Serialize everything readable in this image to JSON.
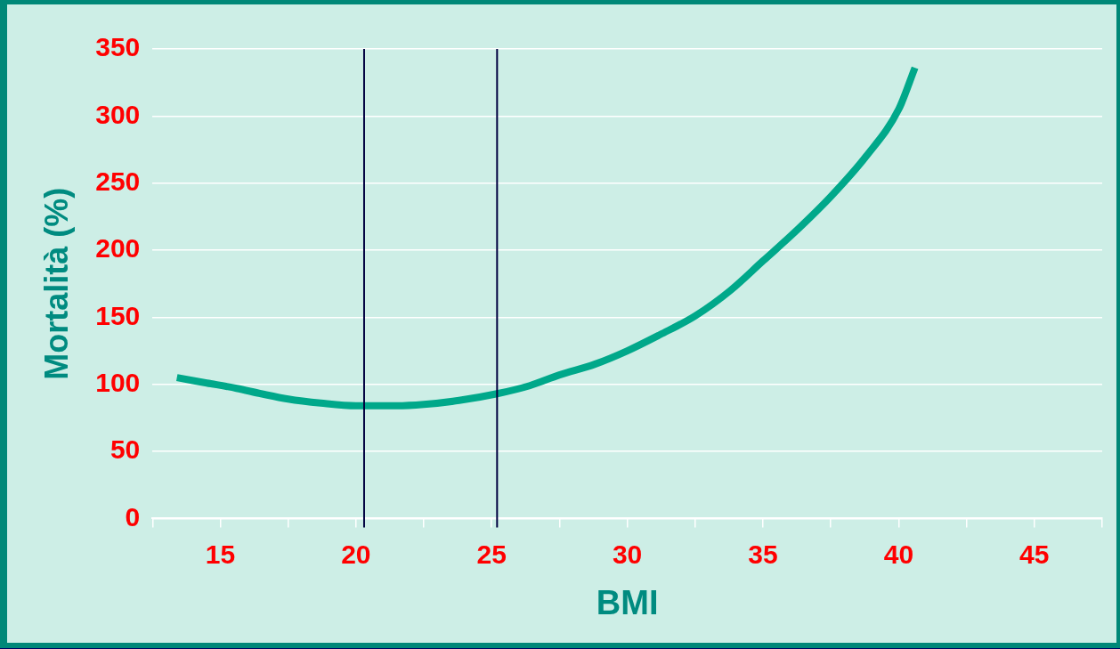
{
  "chart_data": {
    "type": "line",
    "xlabel": "BMI",
    "ylabel": "Mortalità (%)",
    "x": [
      13.4,
      14.5,
      15.6,
      16.5,
      17.5,
      18.7,
      20,
      20.7,
      21.5,
      22.5,
      23.8,
      25.2,
      26.4,
      27.5,
      28.8,
      30,
      31.2,
      32.5,
      33.8,
      35,
      36.2,
      37.5,
      38.8,
      40,
      40.6
    ],
    "series": [
      {
        "color": "#00a88a",
        "values": [
          105,
          101,
          97,
          93,
          89,
          86,
          84,
          84,
          84,
          85,
          88,
          93,
          99,
          107,
          115,
          125,
          137,
          151,
          170,
          192,
          214,
          240,
          270,
          305,
          336
        ]
      }
    ],
    "xlim": [
      12.5,
      47.5
    ],
    "xticks": [
      {
        "value": 12.5,
        "label": null
      },
      15,
      {
        "value": 17.5,
        "label": null
      },
      20,
      {
        "value": 22.5,
        "label": null
      },
      25,
      {
        "value": 27.5,
        "label": null
      },
      30,
      {
        "value": 32.5,
        "label": null
      },
      35,
      {
        "value": 37.5,
        "label": null
      },
      40,
      {
        "value": 42.5,
        "label": null
      },
      45,
      {
        "value": 47.5,
        "label": null
      }
    ],
    "ylim": [
      0,
      350
    ],
    "yticks": [
      0,
      50,
      100,
      150,
      200,
      250,
      300,
      350
    ],
    "ref_lines": [
      {
        "axis": "x",
        "value": 20.3,
        "color": "#000040"
      },
      {
        "axis": "x",
        "value": 25.2,
        "color": "#000040"
      }
    ],
    "grid": "y",
    "marker": "none",
    "line_style": "solid",
    "legend": false
  }
}
